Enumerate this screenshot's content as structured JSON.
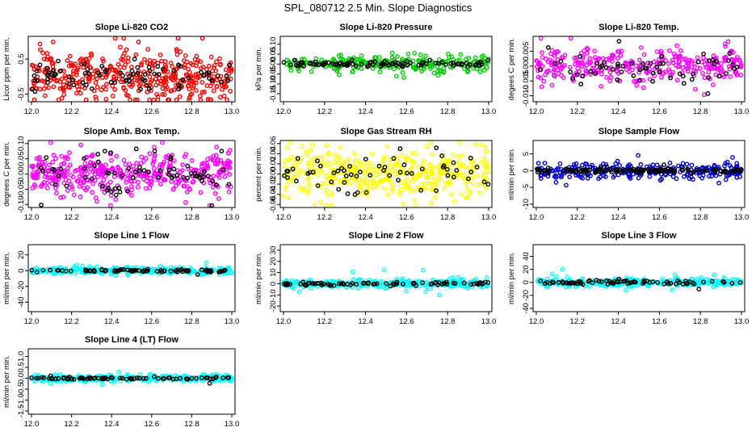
{
  "page": {
    "title": "SPL_080712  2.5 Min. Slope Diagnostics"
  },
  "chart_data": [
    {
      "id": "co2",
      "type": "scatter",
      "title": "Slope Li-820 CO2",
      "ylabel": "Licor ppm per min.",
      "xlim": [
        12.0,
        13.0
      ],
      "xticks": [
        12.0,
        12.2,
        12.4,
        12.6,
        12.8,
        13.0
      ],
      "xtick_labels": [
        "12.0",
        "12.2",
        "12.4",
        "12.6",
        "12.8",
        "13.0"
      ],
      "ylim": [
        -0.72,
        1.15
      ],
      "yticks": [
        -0.5,
        0.5
      ],
      "ytick_labels": [
        "-0.5",
        "0.5"
      ],
      "series": [
        {
          "name": "all",
          "color": "#ff0000",
          "count": 420,
          "center": 0.0,
          "spread": 0.33
        },
        {
          "name": "selected",
          "color": "#000000",
          "count": 80,
          "center": 0.0,
          "spread": 0.2
        }
      ]
    },
    {
      "id": "pressure",
      "type": "scatter",
      "title": "Slope Li-820 Pressure",
      "ylabel": "kPa per min.",
      "xlim": [
        12.0,
        13.0
      ],
      "xticks": [
        12.0,
        12.2,
        12.4,
        12.6,
        12.8,
        13.0
      ],
      "xtick_labels": [
        "12.0",
        "12.2",
        "12.4",
        "12.6",
        "12.8",
        "13.0"
      ],
      "ylim": [
        -0.19,
        0.14
      ],
      "yticks": [
        -0.15,
        -0.1,
        -0.05,
        0.0,
        0.05,
        0.1
      ],
      "ytick_labels": [
        "-0.15",
        "-0.10",
        "-0.05",
        "0.00",
        "0.05",
        "0.10"
      ],
      "series": [
        {
          "name": "all",
          "color": "#00cc00",
          "count": 260,
          "center": 0.0,
          "spread": 0.02
        },
        {
          "name": "selected",
          "color": "#000000",
          "count": 90,
          "center": 0.0,
          "spread": 0.008
        }
      ]
    },
    {
      "id": "temp",
      "type": "scatter",
      "title": "Slope Li-820 Temp.",
      "ylabel": "degees C per min.",
      "xlim": [
        12.0,
        13.0
      ],
      "xticks": [
        12.0,
        12.2,
        12.4,
        12.6,
        12.8,
        13.0
      ],
      "xtick_labels": [
        "12.0",
        "12.2",
        "12.4",
        "12.6",
        "12.8",
        "13.0"
      ],
      "ylim": [
        -0.012,
        0.01
      ],
      "yticks": [
        -0.01,
        -0.005,
        0.0,
        0.005
      ],
      "ytick_labels": [
        "-0.010",
        "-0.005",
        "0.000",
        "0.005"
      ],
      "series": [
        {
          "name": "all",
          "color": "#ff00ff",
          "count": 320,
          "center": 0.0,
          "spread": 0.003
        },
        {
          "name": "selected",
          "color": "#000000",
          "count": 60,
          "center": 0.0,
          "spread": 0.0025
        }
      ]
    },
    {
      "id": "boxtemp",
      "type": "scatter",
      "title": "Slope Amb. Box Temp.",
      "ylabel": "degrees C per min.",
      "xlim": [
        12.0,
        13.0
      ],
      "xticks": [
        12.0,
        12.2,
        12.4,
        12.6,
        12.8,
        13.0
      ],
      "xtick_labels": [
        "12.0",
        "12.2",
        "12.4",
        "12.6",
        "12.8",
        "13.0"
      ],
      "ylim": [
        -0.11,
        0.11
      ],
      "yticks": [
        -0.1,
        -0.05,
        0.0,
        0.05,
        0.1
      ],
      "ytick_labels": [
        "-0.10",
        "-0.05",
        "0.00",
        "0.05",
        "0.10"
      ],
      "series": [
        {
          "name": "all",
          "color": "#ff00ff",
          "count": 420,
          "center": 0.0,
          "spread": 0.035
        },
        {
          "name": "selected",
          "color": "#000000",
          "count": 70,
          "center": 0.0,
          "spread": 0.03
        }
      ]
    },
    {
      "id": "rh",
      "type": "scatter",
      "title": "Slope Gas Stream RH",
      "ylabel": "percent per min.",
      "xlim": [
        12.0,
        13.0
      ],
      "xticks": [
        12.0,
        12.2,
        12.4,
        12.6,
        12.8,
        13.0
      ],
      "xtick_labels": [
        "12.0",
        "12.2",
        "12.4",
        "12.6",
        "12.8",
        "13.0"
      ],
      "ylim": [
        -0.066,
        0.066
      ],
      "yticks": [
        -0.06,
        -0.04,
        -0.02,
        0.0,
        0.02,
        0.04,
        0.06
      ],
      "ytick_labels": [
        "-0.06",
        "-0.04",
        "-0.02",
        "0.00",
        "0.02",
        "0.04",
        "0.06"
      ],
      "series": [
        {
          "name": "all",
          "color": "#ffff00",
          "count": 430,
          "center": 0.0,
          "spread": 0.022
        },
        {
          "name": "selected",
          "color": "#000000",
          "count": 60,
          "center": 0.0,
          "spread": 0.02
        }
      ]
    },
    {
      "id": "sampleflow",
      "type": "scatter",
      "title": "Slope Sample Flow",
      "ylabel": "ml/min per min.",
      "xlim": [
        12.0,
        13.0
      ],
      "xticks": [
        12.0,
        12.2,
        12.4,
        12.6,
        12.8,
        13.0
      ],
      "xtick_labels": [
        "12.0",
        "12.2",
        "12.4",
        "12.6",
        "12.8",
        "13.0"
      ],
      "ylim": [
        -11,
        9
      ],
      "yticks": [
        -10,
        -5,
        0,
        5
      ],
      "ytick_labels": [
        "-10",
        "-5",
        "0",
        "5"
      ],
      "series": [
        {
          "name": "all",
          "color": "#0000cc",
          "count": 260,
          "center": 0.0,
          "spread": 1.2
        },
        {
          "name": "selected",
          "color": "#000000",
          "count": 120,
          "center": 0.0,
          "spread": 0.35
        }
      ]
    },
    {
      "id": "line1",
      "type": "scatter",
      "title": "Slope Line 1 Flow",
      "ylabel": "ml/min per min.",
      "xlim": [
        12.0,
        13.0
      ],
      "xticks": [
        12.0,
        12.2,
        12.4,
        12.6,
        12.8,
        13.0
      ],
      "xtick_labels": [
        "12.0",
        "12.2",
        "12.4",
        "12.6",
        "12.8",
        "13.0"
      ],
      "ylim": [
        -52,
        33
      ],
      "yticks": [
        -40,
        -20,
        0,
        20
      ],
      "ytick_labels": [
        "-40",
        "-20",
        "0",
        "20"
      ],
      "series": [
        {
          "name": "all",
          "color": "#00ffff",
          "count": 300,
          "center": 0.0,
          "spread": 2.0
        },
        {
          "name": "selected",
          "color": "#000000",
          "count": 80,
          "center": 0.0,
          "spread": 0.8
        }
      ]
    },
    {
      "id": "line2",
      "type": "scatter",
      "title": "Slope Line 2 Flow",
      "ylabel": "ml/min per min.",
      "xlim": [
        12.0,
        13.0
      ],
      "xticks": [
        12.0,
        12.2,
        12.4,
        12.6,
        12.8,
        13.0
      ],
      "xtick_labels": [
        "12.0",
        "12.2",
        "12.4",
        "12.6",
        "12.8",
        "13.0"
      ],
      "ylim": [
        -25,
        35
      ],
      "yticks": [
        -20,
        -10,
        0,
        10,
        20,
        30
      ],
      "ytick_labels": [
        "-20",
        "-10",
        "0",
        "10",
        "20",
        "30"
      ],
      "series": [
        {
          "name": "all",
          "color": "#00ffff",
          "count": 320,
          "center": 0.0,
          "spread": 1.5
        },
        {
          "name": "selected",
          "color": "#000000",
          "count": 80,
          "center": 0.0,
          "spread": 0.8
        }
      ]
    },
    {
      "id": "line3",
      "type": "scatter",
      "title": "Slope Line 3 Flow",
      "ylabel": "ml/min per min.",
      "xlim": [
        12.0,
        13.0
      ],
      "xticks": [
        12.0,
        12.2,
        12.4,
        12.6,
        12.8,
        13.0
      ],
      "xtick_labels": [
        "12.0",
        "12.2",
        "12.4",
        "12.6",
        "12.8",
        "13.0"
      ],
      "ylim": [
        -45,
        58
      ],
      "yticks": [
        -40,
        -20,
        0,
        20,
        40
      ],
      "ytick_labels": [
        "-40",
        "-20",
        "0",
        "20",
        "40"
      ],
      "series": [
        {
          "name": "all",
          "color": "#00ffff",
          "count": 320,
          "center": 0.0,
          "spread": 3.0
        },
        {
          "name": "selected",
          "color": "#000000",
          "count": 80,
          "center": 0.0,
          "spread": 1.5
        }
      ]
    },
    {
      "id": "line4",
      "type": "scatter",
      "title": "Slope Line 4 (LT) Flow",
      "ylabel": "ml/min per min.",
      "xlim": [
        12.0,
        13.0
      ],
      "xticks": [
        12.0,
        12.2,
        12.4,
        12.6,
        12.8,
        13.0
      ],
      "xtick_labels": [
        "12.0",
        "12.2",
        "12.4",
        "12.6",
        "12.8",
        "13.0"
      ],
      "ylim": [
        -1.65,
        1.35
      ],
      "yticks": [
        -1.5,
        -1.0,
        -0.5,
        0.0,
        0.5,
        1.0
      ],
      "ytick_labels": [
        "-1.5",
        "-1.0",
        "-0.5",
        "0.0",
        "0.5",
        "1.0"
      ],
      "series": [
        {
          "name": "all",
          "color": "#00ffff",
          "count": 320,
          "center": 0.0,
          "spread": 0.07
        },
        {
          "name": "selected",
          "color": "#000000",
          "count": 80,
          "center": 0.0,
          "spread": 0.03
        }
      ]
    }
  ]
}
